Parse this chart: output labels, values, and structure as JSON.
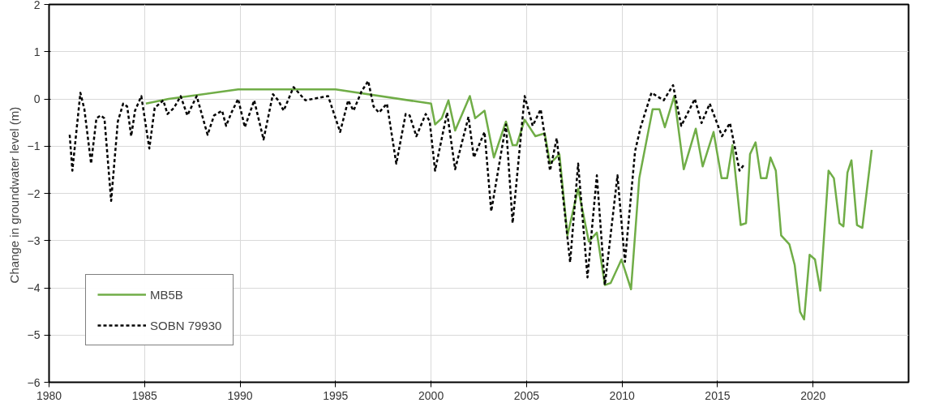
{
  "chart_data": {
    "type": "line",
    "ylabel": "Change  in groundwater level (m)",
    "xlim": [
      1980,
      2025
    ],
    "xticks": [
      1980,
      1985,
      1990,
      1995,
      2000,
      2005,
      2010,
      2015,
      2020
    ],
    "ylim": [
      -6,
      2
    ],
    "yticks": [
      -6,
      -5,
      -4,
      -3,
      -2,
      -1,
      0,
      1,
      2
    ],
    "grid": true,
    "legend": "bottom left",
    "marker": "none",
    "series": [
      {
        "name": "MB5B",
        "color": "#70ad47",
        "line_style": "solid",
        "x": [
          1985.07,
          1986.26,
          1989.9,
          1995.0,
          2000.0,
          2000.21,
          2000.56,
          2000.91,
          2001.26,
          2002.03,
          2002.31,
          2002.8,
          2003.29,
          2003.92,
          2004.27,
          2004.48,
          2004.9,
          2005.46,
          2005.95,
          2006.23,
          2006.72,
          2007.14,
          2007.7,
          2008.26,
          2008.68,
          2009.1,
          2009.4,
          2009.97,
          2010.47,
          2010.9,
          2011.6,
          2011.96,
          2012.24,
          2012.73,
          2013.23,
          2013.86,
          2014.22,
          2014.79,
          2015.21,
          2015.5,
          2015.78,
          2016.21,
          2016.49,
          2016.7,
          2016.99,
          2017.27,
          2017.56,
          2017.77,
          2018.05,
          2018.33,
          2018.76,
          2019.04,
          2019.32,
          2019.53,
          2019.82,
          2020.1,
          2020.38,
          2020.81,
          2021.09,
          2021.38,
          2021.59,
          2021.8,
          2022.01,
          2022.3,
          2022.58,
          2023.07
        ],
        "values": [
          -0.1,
          0.0,
          0.2,
          0.2,
          -0.1,
          -0.54,
          -0.41,
          -0.03,
          -0.67,
          0.06,
          -0.41,
          -0.25,
          -1.24,
          -0.48,
          -0.98,
          -0.98,
          -0.44,
          -0.79,
          -0.73,
          -1.37,
          -1.17,
          -2.89,
          -1.9,
          -3.02,
          -2.83,
          -3.94,
          -3.9,
          -3.4,
          -4.03,
          -1.68,
          -0.22,
          -0.22,
          -0.6,
          0.06,
          -1.49,
          -0.63,
          -1.43,
          -0.7,
          -1.68,
          -1.68,
          -0.98,
          -2.67,
          -2.63,
          -1.17,
          -0.92,
          -1.68,
          -1.68,
          -1.24,
          -1.52,
          -2.89,
          -3.08,
          -3.52,
          -4.51,
          -4.67,
          -3.3,
          -3.4,
          -4.06,
          -1.52,
          -1.68,
          -2.63,
          -2.7,
          -1.56,
          -1.3,
          -2.67,
          -2.73,
          -1.08
        ]
      },
      {
        "name": "SOBN 79930",
        "color": "#000000",
        "line_style": "dashed",
        "x": [
          1981.08,
          1981.22,
          1981.64,
          1981.85,
          1982.2,
          1982.48,
          1982.7,
          1982.9,
          1983.25,
          1983.6,
          1983.88,
          1984.09,
          1984.3,
          1984.5,
          1984.83,
          1985.25,
          1985.53,
          1985.98,
          1986.2,
          1986.54,
          1986.89,
          1987.24,
          1987.73,
          1988.3,
          1988.64,
          1989.06,
          1989.27,
          1989.55,
          1989.9,
          1990.25,
          1990.74,
          1991.23,
          1991.72,
          1992.0,
          1992.28,
          1992.8,
          1993.42,
          1994.61,
          1995.24,
          1995.66,
          1995.94,
          1996.36,
          1996.71,
          1996.99,
          1997.27,
          1997.69,
          1998.18,
          1998.67,
          1998.88,
          1999.23,
          1999.72,
          1999.93,
          2000.21,
          2000.84,
          2001.26,
          2001.96,
          2002.24,
          2002.8,
          2003.15,
          2003.92,
          2004.27,
          2004.9,
          2005.32,
          2005.74,
          2006.23,
          2006.58,
          2007.28,
          2007.7,
          2008.19,
          2008.68,
          2009.1,
          2009.76,
          2010.15,
          2010.68,
          2010.97,
          2011.54,
          2012.18,
          2012.67,
          2013.1,
          2013.81,
          2014.16,
          2014.59,
          2015.23,
          2015.65,
          2016.15,
          2016.43
        ],
        "values": [
          -0.76,
          -1.52,
          0.13,
          -0.22,
          -1.37,
          -0.41,
          -0.35,
          -0.41,
          -2.16,
          -0.48,
          -0.1,
          -0.16,
          -0.79,
          -0.25,
          0.06,
          -1.05,
          -0.19,
          -0.03,
          -0.32,
          -0.19,
          0.06,
          -0.35,
          0.06,
          -0.76,
          -0.35,
          -0.25,
          -0.57,
          -0.29,
          0.0,
          -0.6,
          -0.03,
          -0.86,
          0.1,
          -0.03,
          -0.25,
          0.25,
          -0.03,
          0.06,
          -0.7,
          -0.03,
          -0.25,
          0.16,
          0.38,
          -0.16,
          -0.29,
          -0.1,
          -1.37,
          -0.32,
          -0.35,
          -0.79,
          -0.32,
          -0.48,
          -1.52,
          -0.29,
          -1.49,
          -0.38,
          -1.24,
          -0.7,
          -2.38,
          -0.54,
          -2.63,
          0.06,
          -0.57,
          -0.22,
          -1.52,
          -0.83,
          -3.46,
          -1.37,
          -3.78,
          -1.62,
          -3.94,
          -1.62,
          -3.45,
          -1.11,
          -0.6,
          0.13,
          -0.03,
          0.29,
          -0.57,
          0.0,
          -0.51,
          -0.1,
          -0.79,
          -0.51,
          -1.52,
          -1.37
        ]
      }
    ]
  }
}
